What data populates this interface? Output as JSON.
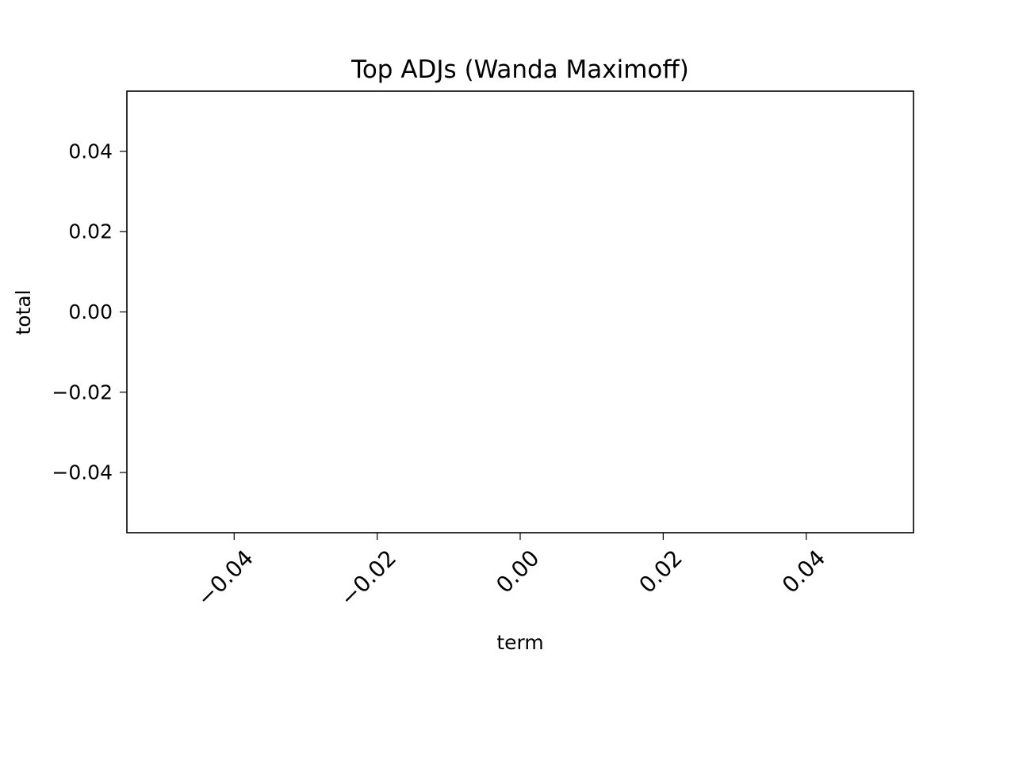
{
  "chart_data": {
    "type": "bar",
    "title": "Top ADJs (Wanda Maximoff)",
    "xlabel": "term",
    "ylabel": "total",
    "categories": [],
    "values": [],
    "xlim": [
      -0.055,
      0.055
    ],
    "ylim": [
      -0.055,
      0.055
    ],
    "xticks": [
      -0.04,
      -0.02,
      0.0,
      0.02,
      0.04
    ],
    "xtick_labels": [
      "−0.04",
      "−0.02",
      "0.00",
      "0.02",
      "0.04"
    ],
    "yticks": [
      -0.04,
      -0.02,
      0.0,
      0.02,
      0.04
    ],
    "ytick_labels": [
      "−0.04",
      "−0.02",
      "0.00",
      "0.02",
      "0.04"
    ],
    "xtick_rotation_deg": 45,
    "grid": false,
    "legend": "none"
  }
}
